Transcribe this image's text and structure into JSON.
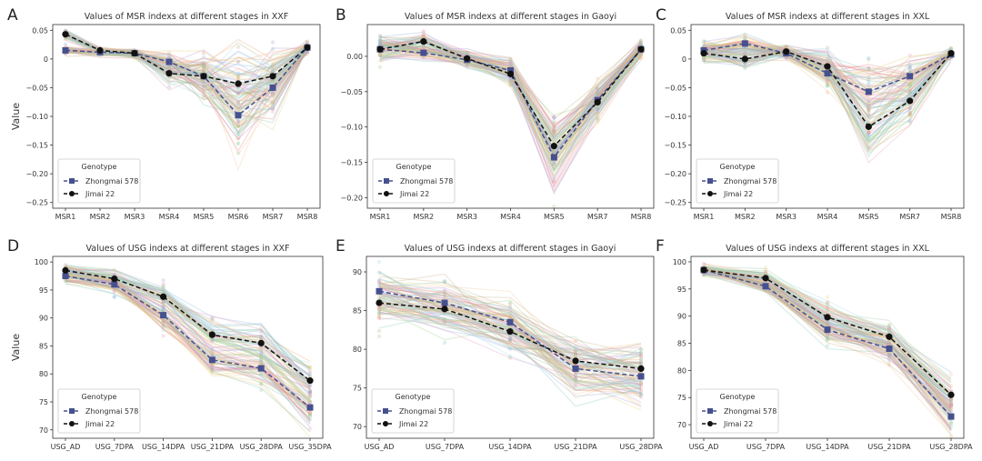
{
  "figure": {
    "y_axis_label": "Value"
  },
  "chart_data": [
    {
      "panel": "A",
      "type": "line",
      "title": "Values of MSR indexs at different stages in XXF",
      "categories": [
        "MSR1",
        "MSR2",
        "MSR3",
        "MSR4",
        "MSR5",
        "MSR6",
        "MSR7",
        "MSR8"
      ],
      "ylim": [
        -0.26,
        0.06
      ],
      "yticks": [
        0.05,
        0,
        -0.05,
        -0.1,
        -0.15,
        -0.2,
        -0.25
      ],
      "ytick_labels": [
        "0.05",
        "0",
        "−0.05",
        "−0.10",
        "−0.15",
        "−0.20",
        "−0.25"
      ],
      "spread": [
        0.006,
        0.005,
        0.005,
        0.014,
        0.03,
        0.055,
        0.04,
        0.008
      ],
      "series": [
        {
          "name": "Zhongmai 578",
          "values": [
            0.015,
            0.012,
            0.01,
            -0.005,
            -0.03,
            -0.098,
            -0.05,
            0.02
          ]
        },
        {
          "name": "Jimai 22",
          "values": [
            0.043,
            0.015,
            0.01,
            -0.025,
            -0.03,
            -0.043,
            -0.03,
            0.02
          ]
        }
      ],
      "legend": {
        "title": "Genotype",
        "position": "lower-left"
      }
    },
    {
      "panel": "B",
      "type": "line",
      "title": "Values of MSR indexs at different stages in Gaoyi",
      "categories": [
        "MSR1",
        "MSR2",
        "MSR3",
        "MSR4",
        "MSR5",
        "MSR7",
        "MSR8"
      ],
      "ylim": [
        -0.215,
        0.045
      ],
      "yticks": [
        0,
        -0.05,
        -0.1,
        -0.15,
        -0.2
      ],
      "ytick_labels": [
        "0.00",
        "−0.05",
        "−0.10",
        "−0.15",
        "−0.20"
      ],
      "spread": [
        0.012,
        0.008,
        0.008,
        0.012,
        0.035,
        0.018,
        0.008
      ],
      "series": [
        {
          "name": "Zhongmai 578",
          "values": [
            0.01,
            0.005,
            -0.005,
            -0.02,
            -0.143,
            -0.062,
            0.01
          ]
        },
        {
          "name": "Jimai 22",
          "values": [
            0.01,
            0.021,
            -0.003,
            -0.025,
            -0.127,
            -0.065,
            0.01
          ]
        }
      ],
      "legend": {
        "title": "Genotype",
        "position": "lower-left"
      }
    },
    {
      "panel": "C",
      "type": "line",
      "title": "Values of MSR indexs at different stages in XXL",
      "categories": [
        "MSR1",
        "MSR2",
        "MSR3",
        "MSR4",
        "MSR5",
        "MSR7",
        "MSR8"
      ],
      "ylim": [
        -0.26,
        0.06
      ],
      "yticks": [
        0.05,
        0,
        -0.05,
        -0.1,
        -0.15,
        -0.2,
        -0.25
      ],
      "ytick_labels": [
        "0.05",
        "0",
        "−0.05",
        "−0.10",
        "−0.15",
        "−0.20",
        "−0.25"
      ],
      "spread": [
        0.012,
        0.012,
        0.008,
        0.02,
        0.045,
        0.03,
        0.008
      ],
      "series": [
        {
          "name": "Zhongmai 578",
          "values": [
            0.015,
            0.027,
            0.01,
            -0.025,
            -0.057,
            -0.03,
            0.008
          ]
        },
        {
          "name": "Jimai 22",
          "values": [
            0.01,
            0.0,
            0.013,
            -0.013,
            -0.118,
            -0.073,
            0.01
          ]
        }
      ],
      "legend": {
        "title": "Genotype",
        "position": "lower-left"
      }
    },
    {
      "panel": "D",
      "type": "line",
      "title": "Values of USG indexs at different stages in XXF",
      "categories": [
        "USG_AD",
        "USG_7DPA",
        "USG_14DPA",
        "USG_21DPA",
        "USG_28DPA",
        "USG_35DPA"
      ],
      "ylim": [
        68.5,
        101
      ],
      "yticks": [
        100,
        95,
        90,
        85,
        80,
        75,
        70
      ],
      "ytick_labels": [
        "100",
        "95",
        "90",
        "85",
        "80",
        "75",
        "70"
      ],
      "spread": [
        0.8,
        1.2,
        1.8,
        2.0,
        2.5,
        3.0
      ],
      "series": [
        {
          "name": "Zhongmai 578",
          "values": [
            97.5,
            96.0,
            90.5,
            82.5,
            81.0,
            74.0
          ]
        },
        {
          "name": "Jimai 22",
          "values": [
            98.5,
            97.0,
            93.8,
            87.0,
            85.5,
            78.8
          ]
        }
      ],
      "legend": {
        "title": "Genotype",
        "position": "lower-left"
      }
    },
    {
      "panel": "E",
      "type": "line",
      "title": "Values of USG indexs at different stages in Gaoyi",
      "categories": [
        "USG_AD",
        "USG_7DPA",
        "USG_14DPA",
        "USG_21DPA",
        "USG_28DPA"
      ],
      "ylim": [
        68.5,
        92
      ],
      "yticks": [
        90,
        85,
        80,
        75,
        70
      ],
      "ytick_labels": [
        "90",
        "85",
        "80",
        "75",
        "70"
      ],
      "spread": [
        2.0,
        2.2,
        2.5,
        2.5,
        2.8
      ],
      "series": [
        {
          "name": "Zhongmai 578",
          "values": [
            87.5,
            86.0,
            83.5,
            77.5,
            76.5
          ]
        },
        {
          "name": "Jimai 22",
          "values": [
            86.0,
            85.2,
            82.3,
            78.5,
            77.5
          ]
        }
      ],
      "legend": {
        "title": "Genotype",
        "position": "lower-left"
      }
    },
    {
      "panel": "F",
      "type": "line",
      "title": "Values of USG indexs at different stages in XXL",
      "categories": [
        "USG_AD",
        "USG_7DPA",
        "USG_14DPA",
        "USG_21DPA",
        "USG_28DPA"
      ],
      "ylim": [
        67.5,
        101
      ],
      "yticks": [
        100,
        95,
        90,
        85,
        80,
        75,
        70
      ],
      "ytick_labels": [
        "100",
        "95",
        "90",
        "85",
        "80",
        "75",
        "70"
      ],
      "spread": [
        0.7,
        1.2,
        2.0,
        2.2,
        3.0
      ],
      "series": [
        {
          "name": "Zhongmai 578",
          "values": [
            98.5,
            95.5,
            87.5,
            84.0,
            71.5
          ]
        },
        {
          "name": "Jimai 22",
          "values": [
            98.5,
            97.0,
            89.8,
            86.2,
            75.5
          ]
        }
      ],
      "legend": {
        "title": "Genotype",
        "position": "lower-left"
      }
    }
  ]
}
